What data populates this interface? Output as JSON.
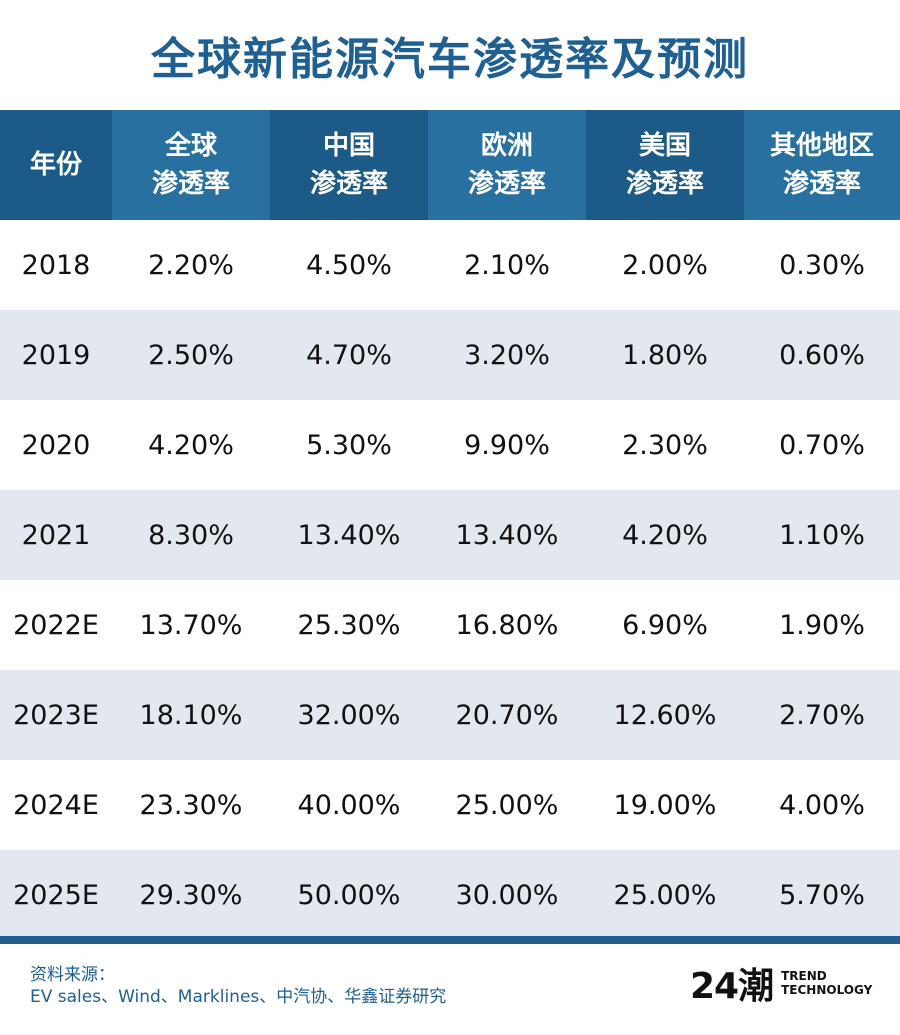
{
  "title": "全球新能源汽车渗透率及预测",
  "header": {
    "year": "年份",
    "global": [
      "全球",
      "渗透率"
    ],
    "china": [
      "中国",
      "渗透率"
    ],
    "europe": [
      "欧洲",
      "渗透率"
    ],
    "usa": [
      "美国",
      "渗透率"
    ],
    "other": [
      "其他地区",
      "渗透率"
    ]
  },
  "rows": [
    {
      "year": "2018",
      "global": "2.20%",
      "china": "4.50%",
      "europe": "2.10%",
      "usa": "2.00%",
      "other": "0.30%"
    },
    {
      "year": "2019",
      "global": "2.50%",
      "china": "4.70%",
      "europe": "3.20%",
      "usa": "1.80%",
      "other": "0.60%"
    },
    {
      "year": "2020",
      "global": "4.20%",
      "china": "5.30%",
      "europe": "9.90%",
      "usa": "2.30%",
      "other": "0.70%"
    },
    {
      "year": "2021",
      "global": "8.30%",
      "china": "13.40%",
      "europe": "13.40%",
      "usa": "4.20%",
      "other": "1.10%"
    },
    {
      "year": "2022E",
      "global": "13.70%",
      "china": "25.30%",
      "europe": "16.80%",
      "usa": "6.90%",
      "other": "1.90%"
    },
    {
      "year": "2023E",
      "global": "18.10%",
      "china": "32.00%",
      "europe": "20.70%",
      "usa": "12.60%",
      "other": "2.70%"
    },
    {
      "year": "2024E",
      "global": "23.30%",
      "china": "40.00%",
      "europe": "25.00%",
      "usa": "19.00%",
      "other": "4.00%"
    },
    {
      "year": "2025E",
      "global": "29.30%",
      "china": "50.00%",
      "europe": "30.00%",
      "usa": "25.00%",
      "other": "5.70%"
    }
  ],
  "source": {
    "label": "资料来源：",
    "text": "EV sales、Wind、Marklines、中汽协、华鑫证券研究"
  },
  "logo": {
    "mark": "24潮",
    "line1": "TREND",
    "line2": "TECHNOLOGY"
  },
  "colors": {
    "title": "#1f5f91",
    "header_dark": "#1c5a87",
    "header_mid": "#27709f",
    "row_alt": "#e3e8f0"
  }
}
